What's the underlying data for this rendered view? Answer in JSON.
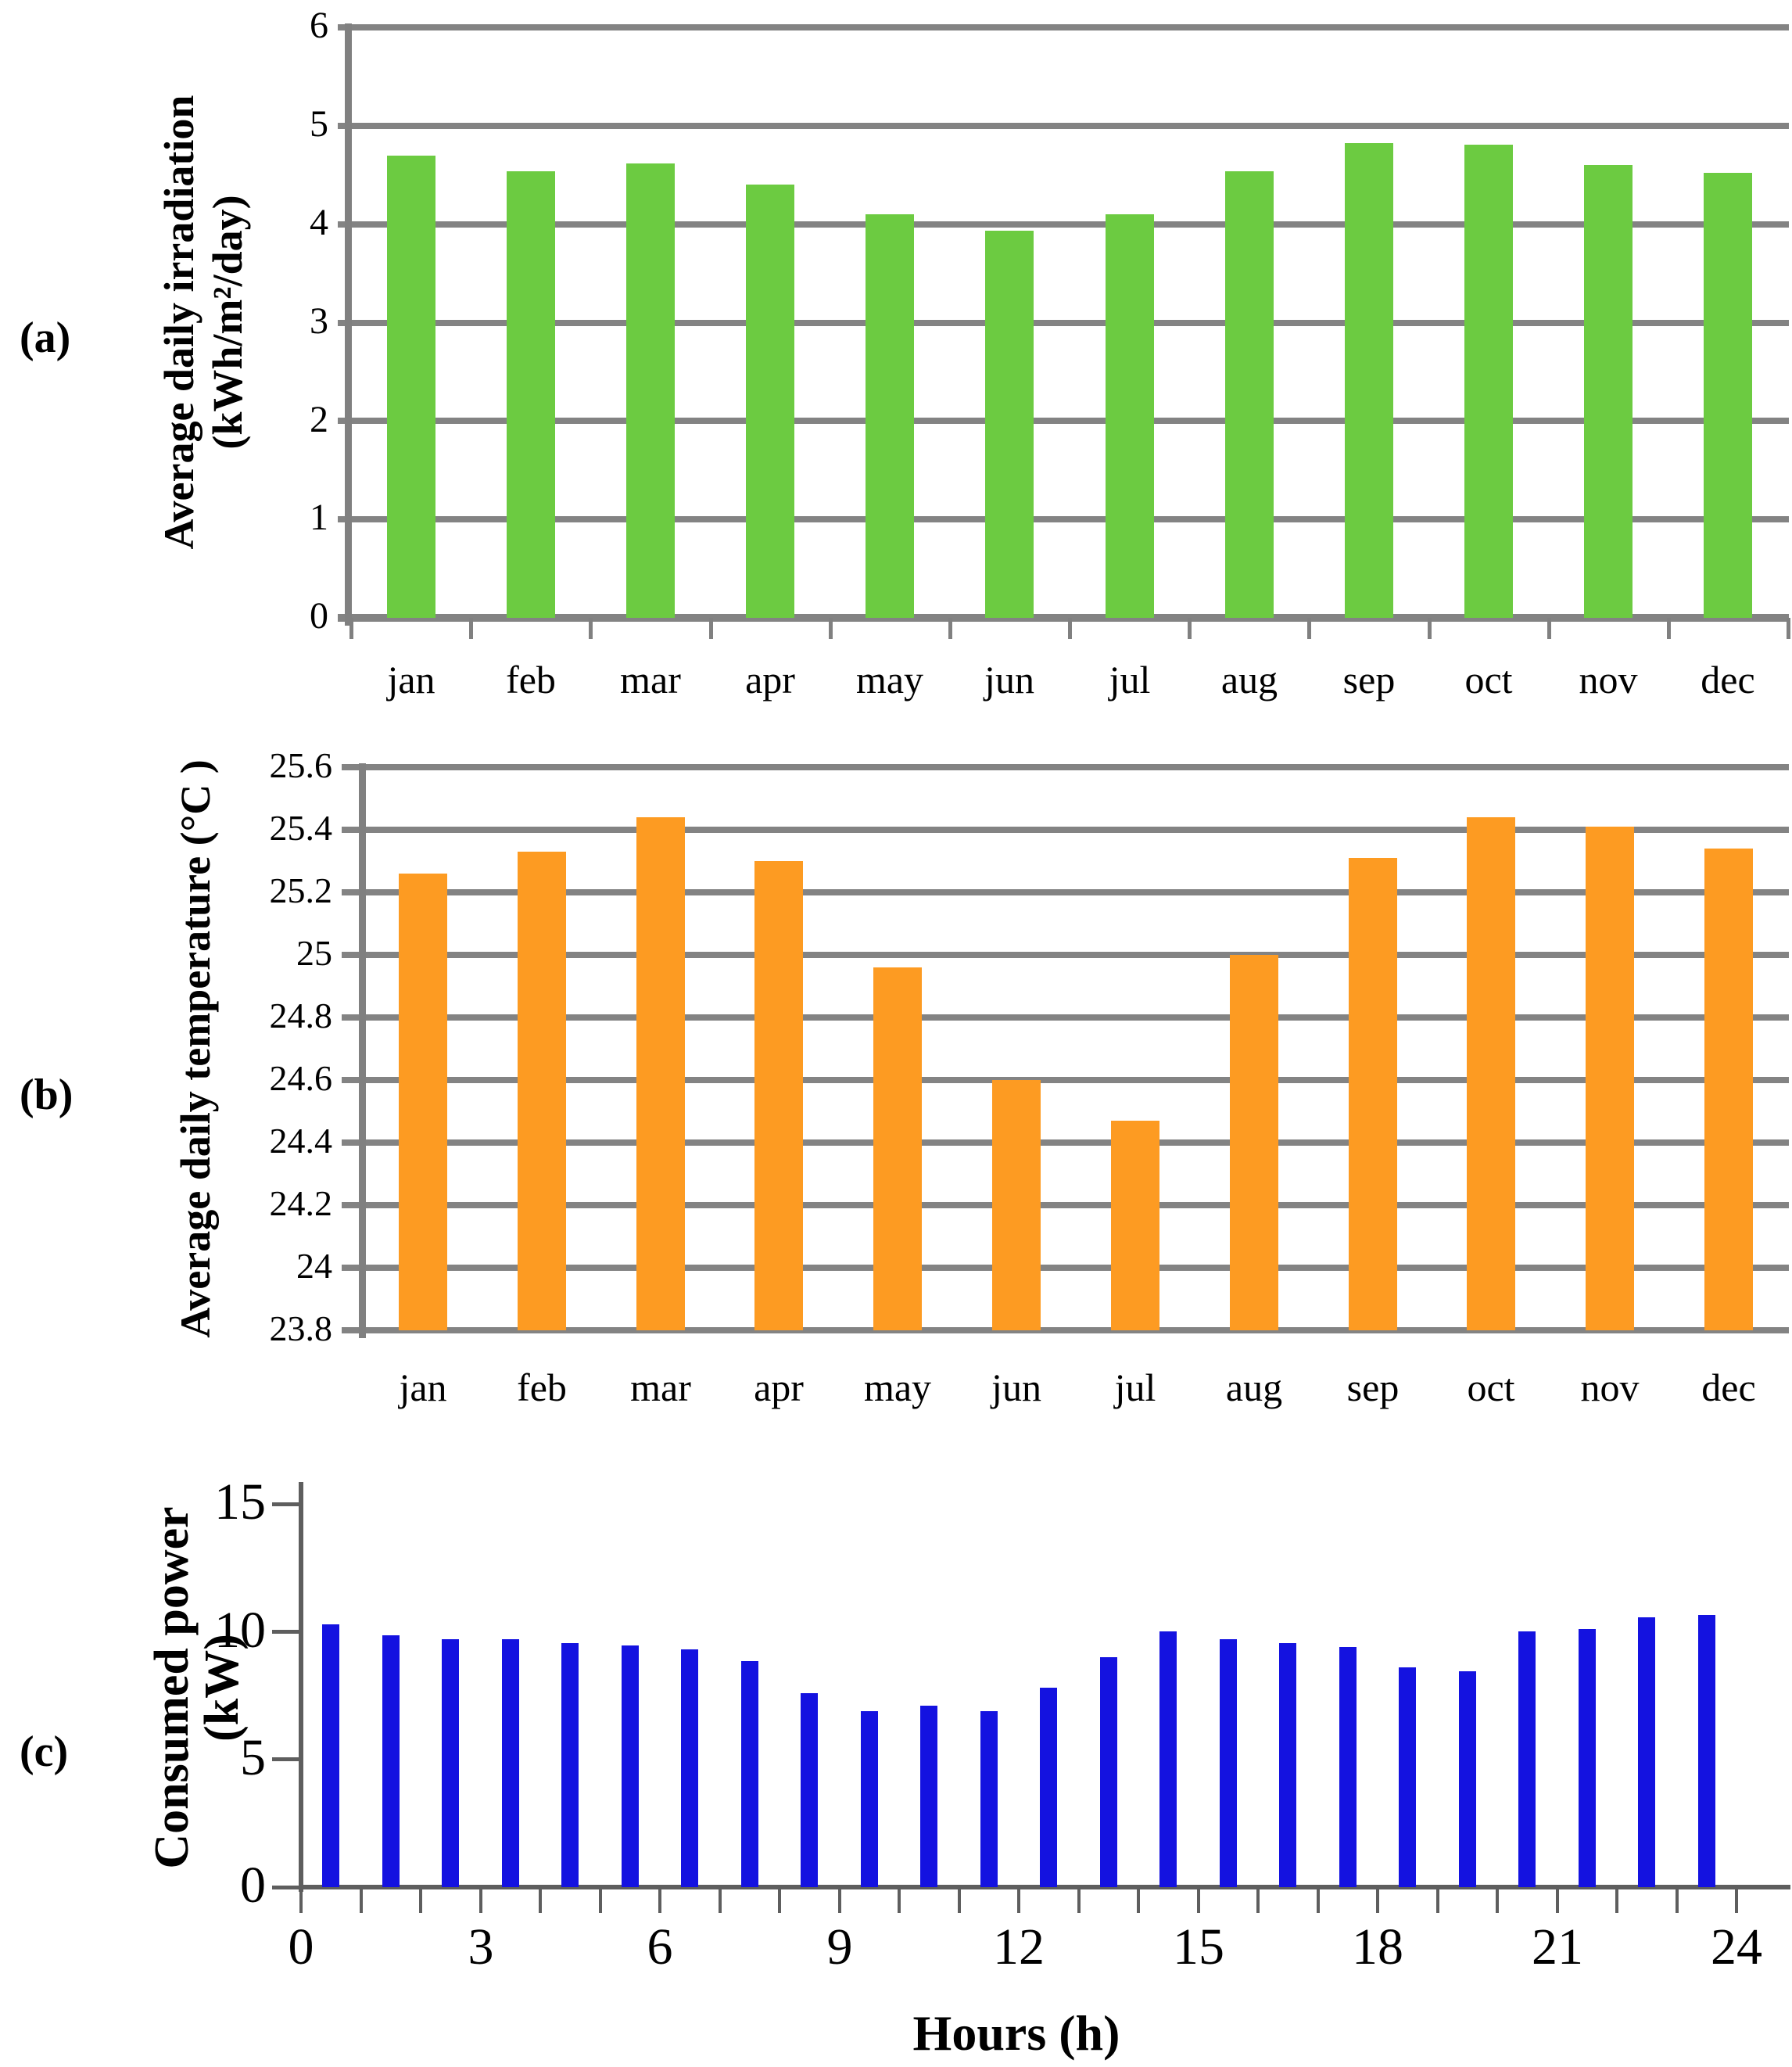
{
  "figure": {
    "xlabel_c": "Hours (h)"
  },
  "colors": {
    "gridline": "#838383",
    "axis_ab": "#808080",
    "axis_c": "#5e5e5e",
    "text": "#000000",
    "irradiation_green": "#6CCB41",
    "temperature_orange": "#FD9B22",
    "power_blue": "#1412E0"
  },
  "chart_data": [
    {
      "type": "bar",
      "panel_label": "(a)",
      "ylabel_lines": [
        "Average daily irradiation",
        "(kWh/m²/day)"
      ],
      "categories": [
        "jan",
        "feb",
        "mar",
        "apr",
        "may",
        "jun",
        "jul",
        "aug",
        "sep",
        "oct",
        "nov",
        "dec"
      ],
      "values": [
        4.7,
        4.54,
        4.62,
        4.4,
        4.1,
        3.93,
        4.1,
        4.54,
        4.82,
        4.81,
        4.6,
        4.52
      ],
      "ylim": [
        0,
        6
      ],
      "yticks": [
        "6",
        "5",
        "4",
        "3",
        "2",
        "1",
        "0"
      ],
      "grid": true,
      "legend": null,
      "bar_color": "#6CCB41"
    },
    {
      "type": "bar",
      "panel_label": "(b)",
      "ylabel": "Average daily temperature (°C )",
      "categories": [
        "jan",
        "feb",
        "mar",
        "apr",
        "may",
        "jun",
        "jul",
        "aug",
        "sep",
        "oct",
        "nov",
        "dec"
      ],
      "values": [
        25.26,
        25.33,
        25.44,
        25.3,
        24.96,
        24.6,
        24.47,
        25.0,
        25.31,
        25.44,
        25.41,
        25.34
      ],
      "ylim": [
        23.8,
        25.6
      ],
      "yticks": [
        "25.6",
        "25.4",
        "25.2",
        "25",
        "24.8",
        "24.6",
        "24.4",
        "24.2",
        "24",
        "23.8"
      ],
      "grid": true,
      "legend": null,
      "bar_color": "#FD9B22"
    },
    {
      "type": "bar",
      "panel_label": "(c)",
      "ylabel": "Consumed power (kW)",
      "xlabel": "Hours (h)",
      "x_bar_centers_hours": [
        0.5,
        1.5,
        2.5,
        3.5,
        4.5,
        5.5,
        6.5,
        7.5,
        8.5,
        9.5,
        10.5,
        11.5,
        12.5,
        13.5,
        14.5,
        15.5,
        16.5,
        17.5,
        18.5,
        19.5,
        20.5,
        21.5,
        22.5,
        23.5
      ],
      "values": [
        10.3,
        9.85,
        9.7,
        9.7,
        9.55,
        9.45,
        9.3,
        8.85,
        7.6,
        6.9,
        7.1,
        6.9,
        7.8,
        9.0,
        10.0,
        9.7,
        9.55,
        9.4,
        8.6,
        8.45,
        10.0,
        10.1,
        10.55,
        10.65
      ],
      "ylim": [
        0,
        15
      ],
      "yticks": [
        "15",
        "10",
        "5",
        "0"
      ],
      "ytick_values": [
        15,
        10,
        5,
        0
      ],
      "xticks": [
        "0",
        "3",
        "6",
        "9",
        "12",
        "15",
        "18",
        "21",
        "24"
      ],
      "xtick_values": [
        0,
        3,
        6,
        9,
        12,
        15,
        18,
        21,
        24
      ],
      "xminor_tick_every_hour": true,
      "grid": false,
      "legend": null,
      "bar_color": "#1412E0"
    }
  ]
}
